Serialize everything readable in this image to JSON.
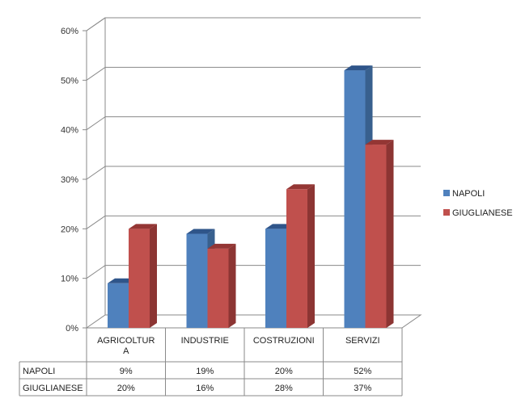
{
  "chart_data": {
    "type": "bar",
    "title": "",
    "xlabel": "",
    "ylabel": "",
    "ylim": [
      0,
      0.6
    ],
    "yticks": [
      "0%",
      "10%",
      "20%",
      "30%",
      "40%",
      "50%",
      "60%"
    ],
    "categories": [
      "AGRICOLTUR\nA",
      "INDUSTRIE",
      "COSTRUZIONI",
      "SERVIZI"
    ],
    "series": [
      {
        "name": "NAPOLI",
        "values": [
          0.09,
          0.19,
          0.2,
          0.52
        ],
        "labels": [
          "9%",
          "19%",
          "20%",
          "52%"
        ],
        "color": "#4f81bd",
        "side": "#38608e",
        "top": "#2f558a"
      },
      {
        "name": "GIUGLIANESE",
        "values": [
          0.2,
          0.16,
          0.28,
          0.37
        ],
        "labels": [
          "20%",
          "16%",
          "28%",
          "37%"
        ],
        "color": "#c0504d",
        "side": "#8c3533",
        "top": "#943634"
      }
    ],
    "legend": "right",
    "grid": true,
    "data_table": true
  }
}
